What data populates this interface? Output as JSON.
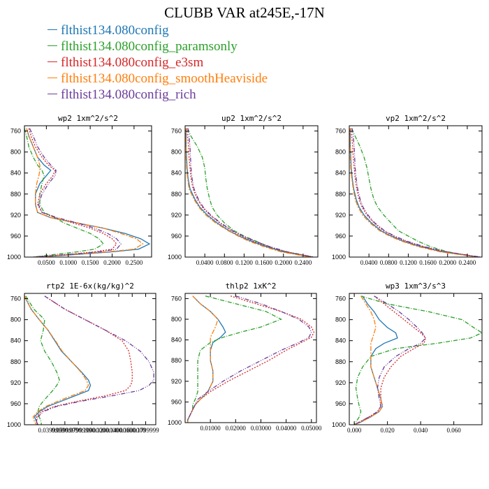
{
  "figure": {
    "title": "CLUBB VAR at245E,-17N",
    "legend": [
      {
        "label": "flthist134.080config",
        "color": "#1f77b4"
      },
      {
        "label": "flthist134.080config_paramsonly",
        "color": "#2ca02c"
      },
      {
        "label": "flthist134.080config_e3sm",
        "color": "#d62728"
      },
      {
        "label": "flthist134.080config_smoothHeaviside",
        "color": "#ff7f0e"
      },
      {
        "label": "flthist134.080config_rich",
        "color": "#6a3d9a"
      }
    ]
  },
  "chart_data": [
    {
      "type": "line",
      "title": "wp2  1xm^2/s^2",
      "xlim": [
        0,
        0.29
      ],
      "ylim": [
        1000,
        750
      ],
      "xticks": [
        0.05,
        0.1,
        0.15,
        0.2,
        0.25
      ],
      "xticklabels": [
        "0.0500",
        "0.1000",
        "0.1500",
        "0.2000",
        "0.2500"
      ],
      "yticks": [
        760,
        800,
        840,
        880,
        920,
        960,
        1000
      ],
      "y": [
        755,
        770,
        790,
        810,
        825,
        835,
        845,
        860,
        880,
        900,
        915,
        925,
        935,
        945,
        955,
        965,
        975,
        985,
        990,
        995,
        1000
      ],
      "series": [
        {
          "name": "flthist134.080config",
          "x": [
            0.005,
            0.01,
            0.02,
            0.03,
            0.045,
            0.06,
            0.05,
            0.035,
            0.025,
            0.025,
            0.03,
            0.06,
            0.12,
            0.18,
            0.23,
            0.265,
            0.285,
            0.26,
            0.2,
            0.12,
            0.03
          ]
        },
        {
          "name": "flthist134.080config_paramsonly",
          "x": [
            0.0,
            0.005,
            0.01,
            0.02,
            0.03,
            0.04,
            0.045,
            0.04,
            0.035,
            0.035,
            0.045,
            0.07,
            0.09,
            0.12,
            0.15,
            0.17,
            0.18,
            0.16,
            0.12,
            0.07,
            0.02
          ]
        },
        {
          "name": "flthist134.080config_e3sm",
          "x": [
            0.01,
            0.015,
            0.025,
            0.04,
            0.055,
            0.07,
            0.065,
            0.05,
            0.035,
            0.03,
            0.04,
            0.07,
            0.11,
            0.15,
            0.18,
            0.2,
            0.21,
            0.2,
            0.16,
            0.1,
            0.02
          ]
        },
        {
          "name": "flthist134.080config_smoothHeaviside",
          "x": [
            0.005,
            0.01,
            0.02,
            0.03,
            0.035,
            0.035,
            0.033,
            0.028,
            0.025,
            0.025,
            0.03,
            0.06,
            0.12,
            0.18,
            0.22,
            0.255,
            0.27,
            0.25,
            0.19,
            0.11,
            0.03
          ]
        },
        {
          "name": "flthist134.080config_rich",
          "x": [
            0.012,
            0.02,
            0.03,
            0.045,
            0.06,
            0.072,
            0.07,
            0.055,
            0.04,
            0.032,
            0.04,
            0.075,
            0.12,
            0.16,
            0.19,
            0.21,
            0.22,
            0.21,
            0.17,
            0.1,
            0.02
          ]
        }
      ]
    },
    {
      "type": "line",
      "title": "up2  1xm^2/s^2",
      "xlim": [
        0,
        0.27
      ],
      "ylim": [
        1000,
        750
      ],
      "xticks": [
        0.04,
        0.08,
        0.12,
        0.16,
        0.2,
        0.24
      ],
      "xticklabels": [
        "0.0400",
        "0.0800",
        "0.1200",
        "0.1600",
        "0.2000",
        "0.2400"
      ],
      "yticks": [
        760,
        800,
        840,
        880,
        920,
        960,
        1000
      ],
      "y": [
        755,
        770,
        790,
        810,
        830,
        850,
        870,
        890,
        905,
        920,
        935,
        950,
        960,
        970,
        980,
        990,
        1000
      ],
      "series": [
        {
          "name": "flthist134.080config",
          "x": [
            0.001,
            0.002,
            0.002,
            0.003,
            0.004,
            0.006,
            0.01,
            0.02,
            0.03,
            0.045,
            0.065,
            0.09,
            0.11,
            0.135,
            0.165,
            0.2,
            0.26
          ]
        },
        {
          "name": "flthist134.080config_paramsonly",
          "x": [
            0.005,
            0.012,
            0.025,
            0.035,
            0.04,
            0.042,
            0.045,
            0.05,
            0.055,
            0.065,
            0.08,
            0.1,
            0.12,
            0.145,
            0.17,
            0.205,
            0.26
          ]
        },
        {
          "name": "flthist134.080config_e3sm",
          "x": [
            0.003,
            0.005,
            0.007,
            0.008,
            0.01,
            0.012,
            0.016,
            0.025,
            0.035,
            0.05,
            0.07,
            0.095,
            0.115,
            0.14,
            0.17,
            0.205,
            0.26
          ]
        },
        {
          "name": "flthist134.080config_smoothHeaviside",
          "x": [
            0.001,
            0.001,
            0.002,
            0.002,
            0.003,
            0.005,
            0.008,
            0.018,
            0.028,
            0.042,
            0.062,
            0.088,
            0.108,
            0.13,
            0.16,
            0.195,
            0.255
          ]
        },
        {
          "name": "flthist134.080config_rich",
          "x": [
            0.006,
            0.008,
            0.01,
            0.011,
            0.012,
            0.014,
            0.018,
            0.027,
            0.037,
            0.052,
            0.072,
            0.097,
            0.118,
            0.143,
            0.172,
            0.208,
            0.262
          ]
        }
      ]
    },
    {
      "type": "line",
      "title": "vp2  1xm^2/s^2",
      "xlim": [
        0,
        0.27
      ],
      "ylim": [
        1000,
        750
      ],
      "xticks": [
        0.04,
        0.08,
        0.12,
        0.16,
        0.2,
        0.24
      ],
      "xticklabels": [
        "0.0400",
        "0.0800",
        "0.1200",
        "0.1600",
        "0.2000",
        "0.2400"
      ],
      "yticks": [
        760,
        800,
        840,
        880,
        920,
        960,
        1000
      ],
      "y": [
        755,
        770,
        790,
        810,
        830,
        850,
        870,
        890,
        905,
        920,
        935,
        950,
        960,
        970,
        980,
        990,
        1000
      ],
      "series": [
        {
          "name": "flthist134.080config",
          "x": [
            0.001,
            0.002,
            0.002,
            0.003,
            0.004,
            0.006,
            0.009,
            0.014,
            0.02,
            0.03,
            0.045,
            0.065,
            0.085,
            0.11,
            0.145,
            0.19,
            0.265
          ]
        },
        {
          "name": "flthist134.080config_paramsonly",
          "x": [
            0.005,
            0.012,
            0.022,
            0.03,
            0.036,
            0.04,
            0.044,
            0.05,
            0.058,
            0.07,
            0.085,
            0.1,
            0.12,
            0.14,
            0.165,
            0.2,
            0.26
          ]
        },
        {
          "name": "flthist134.080config_e3sm",
          "x": [
            0.003,
            0.005,
            0.007,
            0.008,
            0.01,
            0.012,
            0.015,
            0.02,
            0.026,
            0.036,
            0.05,
            0.07,
            0.09,
            0.115,
            0.15,
            0.195,
            0.265
          ]
        },
        {
          "name": "flthist134.080config_smoothHeaviside",
          "x": [
            0.001,
            0.001,
            0.002,
            0.002,
            0.003,
            0.005,
            0.008,
            0.012,
            0.018,
            0.027,
            0.042,
            0.062,
            0.082,
            0.107,
            0.14,
            0.185,
            0.26
          ]
        },
        {
          "name": "flthist134.080config_rich",
          "x": [
            0.006,
            0.008,
            0.01,
            0.011,
            0.012,
            0.014,
            0.017,
            0.022,
            0.028,
            0.038,
            0.052,
            0.072,
            0.092,
            0.118,
            0.152,
            0.198,
            0.267
          ]
        }
      ]
    },
    {
      "type": "line",
      "title": "rtp2  1E-6x(kg/kg)^2",
      "xlim": [
        0,
        0.195
      ],
      "ylim": [
        1000,
        750
      ],
      "xticks": [
        0.04,
        0.06,
        0.08,
        0.1,
        0.12,
        0.14,
        0.16,
        0.18
      ],
      "xticklabels": [
        "0.0399999",
        "0.0599999",
        "0.0799999",
        "0.1000000",
        "0.1200000",
        "0.1400000",
        "0.1600000",
        "0.1799999"
      ],
      "yticks": [
        760,
        800,
        840,
        880,
        920,
        960,
        1000
      ],
      "y": [
        755,
        780,
        800,
        820,
        840,
        860,
        880,
        900,
        915,
        925,
        935,
        945,
        955,
        965,
        975,
        985,
        995,
        1000
      ],
      "series": [
        {
          "name": "flthist134.080config",
          "x": [
            0.0,
            0.01,
            0.022,
            0.035,
            0.045,
            0.055,
            0.07,
            0.085,
            0.095,
            0.098,
            0.095,
            0.075,
            0.055,
            0.035,
            0.022,
            0.015,
            0.018,
            0.02
          ]
        },
        {
          "name": "flthist134.080config_paramsonly",
          "x": [
            0.002,
            0.014,
            0.03,
            0.028,
            0.024,
            0.03,
            0.04,
            0.048,
            0.052,
            0.048,
            0.042,
            0.035,
            0.028,
            0.022,
            0.02,
            0.022,
            0.025,
            0.025
          ]
        },
        {
          "name": "flthist134.080config_e3sm",
          "x": [
            0.03,
            0.06,
            0.09,
            0.12,
            0.145,
            0.155,
            0.158,
            0.16,
            0.16,
            0.158,
            0.15,
            0.12,
            0.08,
            0.045,
            0.025,
            0.018,
            0.018,
            0.02
          ]
        },
        {
          "name": "flthist134.080config_smoothHeaviside",
          "x": [
            0.0,
            0.01,
            0.022,
            0.035,
            0.046,
            0.056,
            0.07,
            0.084,
            0.092,
            0.095,
            0.09,
            0.07,
            0.05,
            0.032,
            0.02,
            0.013,
            0.015,
            0.018
          ]
        },
        {
          "name": "flthist134.080config_rich",
          "x": [
            0.03,
            0.06,
            0.09,
            0.12,
            0.15,
            0.172,
            0.185,
            0.192,
            0.192,
            0.185,
            0.17,
            0.13,
            0.085,
            0.048,
            0.028,
            0.02,
            0.018,
            0.02
          ]
        }
      ]
    },
    {
      "type": "line",
      "title": "thlp2  1xK^2",
      "xlim": [
        0,
        0.052
      ],
      "ylim": [
        1000,
        750
      ],
      "xticks": [
        0.01,
        0.02,
        0.03,
        0.04,
        0.05
      ],
      "xticklabels": [
        "0.01000",
        "0.02000",
        "0.03000",
        "0.04000",
        "0.05000"
      ],
      "yticks": [
        760,
        800,
        840,
        880,
        920,
        960,
        1000
      ],
      "y": [
        755,
        770,
        785,
        800,
        815,
        825,
        835,
        845,
        860,
        880,
        900,
        920,
        940,
        955,
        965,
        975,
        985,
        995,
        1000
      ],
      "series": [
        {
          "name": "flthist134.080config",
          "x": [
            0.003,
            0.006,
            0.01,
            0.013,
            0.015,
            0.016,
            0.014,
            0.011,
            0.01,
            0.01,
            0.011,
            0.011,
            0.009,
            0.006,
            0.004,
            0.003,
            0.002,
            0.001,
            0.001
          ]
        },
        {
          "name": "flthist134.080config_paramsonly",
          "x": [
            0.008,
            0.02,
            0.032,
            0.038,
            0.03,
            0.022,
            0.015,
            0.01,
            0.006,
            0.005,
            0.005,
            0.005,
            0.005,
            0.004,
            0.003,
            0.003,
            0.002,
            0.001,
            0.001
          ]
        },
        {
          "name": "flthist134.080config_e3sm",
          "x": [
            0.018,
            0.028,
            0.038,
            0.046,
            0.05,
            0.051,
            0.05,
            0.046,
            0.04,
            0.033,
            0.025,
            0.017,
            0.01,
            0.006,
            0.004,
            0.003,
            0.002,
            0.001,
            0.001
          ]
        },
        {
          "name": "flthist134.080config_smoothHeaviside",
          "x": [
            0.003,
            0.006,
            0.01,
            0.013,
            0.012,
            0.011,
            0.01,
            0.01,
            0.01,
            0.01,
            0.011,
            0.011,
            0.009,
            0.006,
            0.004,
            0.003,
            0.002,
            0.001,
            0.001
          ]
        },
        {
          "name": "flthist134.080config_rich",
          "x": [
            0.02,
            0.03,
            0.038,
            0.045,
            0.049,
            0.05,
            0.049,
            0.045,
            0.038,
            0.03,
            0.022,
            0.015,
            0.009,
            0.005,
            0.004,
            0.003,
            0.002,
            0.001,
            0.001
          ]
        }
      ]
    },
    {
      "type": "line",
      "title": "wp3  1xm^3/s^3",
      "xlim": [
        -0.003,
        0.077
      ],
      "ylim": [
        1000,
        750
      ],
      "xticks": [
        0.0,
        0.02,
        0.04,
        0.06
      ],
      "xticklabels": [
        "0.000",
        "0.020",
        "0.040",
        "0.060"
      ],
      "yticks": [
        760,
        800,
        840,
        880,
        920,
        960,
        1000
      ],
      "y": [
        755,
        770,
        785,
        800,
        815,
        825,
        835,
        845,
        855,
        870,
        890,
        910,
        930,
        950,
        965,
        975,
        985,
        995,
        1000
      ],
      "series": [
        {
          "name": "flthist134.080config",
          "x": [
            0.005,
            0.008,
            0.012,
            0.015,
            0.02,
            0.025,
            0.026,
            0.018,
            0.013,
            0.01,
            0.01,
            0.012,
            0.014,
            0.016,
            0.017,
            0.015,
            0.01,
            0.004,
            0.0
          ]
        },
        {
          "name": "flthist134.080config_paramsonly",
          "x": [
            0.004,
            0.02,
            0.045,
            0.065,
            0.072,
            0.077,
            0.07,
            0.05,
            0.025,
            0.01,
            0.005,
            0.002,
            0.001,
            0.002,
            0.003,
            0.004,
            0.003,
            0.001,
            0.0
          ]
        },
        {
          "name": "flthist134.080config_e3sm",
          "x": [
            0.012,
            0.018,
            0.024,
            0.03,
            0.036,
            0.04,
            0.043,
            0.042,
            0.036,
            0.028,
            0.022,
            0.018,
            0.016,
            0.016,
            0.016,
            0.014,
            0.009,
            0.003,
            0.0
          ]
        },
        {
          "name": "flthist134.080config_smoothHeaviside",
          "x": [
            0.004,
            0.007,
            0.01,
            0.012,
            0.013,
            0.012,
            0.011,
            0.01,
            0.01,
            0.01,
            0.01,
            0.012,
            0.014,
            0.016,
            0.017,
            0.015,
            0.01,
            0.004,
            0.0
          ]
        },
        {
          "name": "flthist134.080config_rich",
          "x": [
            0.012,
            0.02,
            0.027,
            0.033,
            0.038,
            0.041,
            0.043,
            0.04,
            0.033,
            0.025,
            0.018,
            0.015,
            0.014,
            0.015,
            0.016,
            0.014,
            0.009,
            0.003,
            0.0
          ]
        }
      ]
    }
  ]
}
